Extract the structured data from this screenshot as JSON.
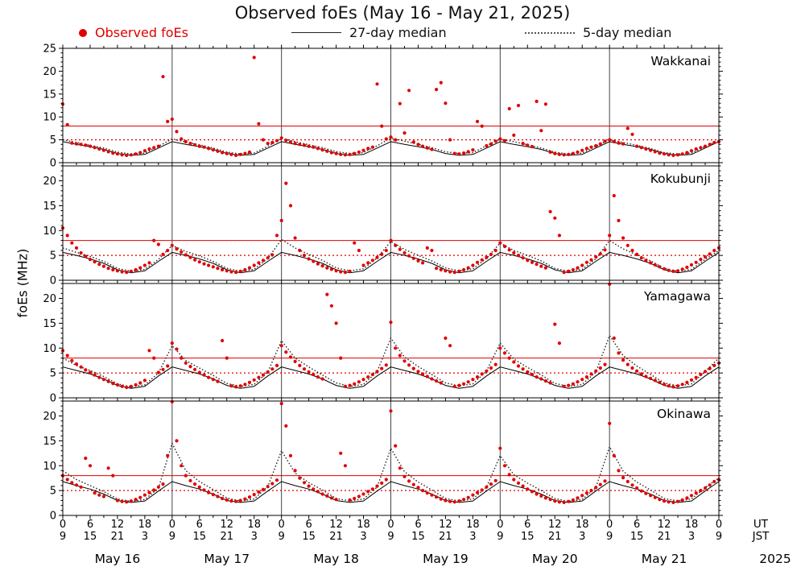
{
  "title": "Observed foEs (May 16 - May 21, 2025)",
  "ylabel": "foEs (MHz)",
  "legend": {
    "observed": "Observed foEs",
    "median27": "27-day median",
    "median5": "5-day median"
  },
  "colors": {
    "observed": "#e00000",
    "median27": "#000000",
    "median5": "#222222",
    "reference": "#e00000",
    "day_grid": "#444444"
  },
  "chart_data": {
    "type": "scatter",
    "x_unit_hours_ut": true,
    "x_range": [
      0,
      144
    ],
    "observed_step_hours": 1,
    "median_step_hours": 3,
    "reference_lines": {
      "solid": 8,
      "dotted": 5
    },
    "axis": {
      "tick_step_hours": 6,
      "day_boundaries": [
        24,
        48,
        72,
        96,
        120
      ],
      "ut_labels": [
        "0",
        "6",
        "12",
        "18",
        "0",
        "6",
        "12",
        "18",
        "0",
        "6",
        "12",
        "18",
        "0",
        "6",
        "12",
        "18",
        "0",
        "6",
        "12",
        "18",
        "0",
        "6",
        "12",
        "18",
        "0"
      ],
      "jst_labels": [
        "9",
        "15",
        "21",
        "3",
        "9",
        "15",
        "21",
        "3",
        "9",
        "15",
        "21",
        "3",
        "9",
        "15",
        "21",
        "3",
        "9",
        "15",
        "21",
        "3",
        "9",
        "15",
        "21",
        "3",
        "9"
      ],
      "ut_unit": "UT",
      "jst_unit": "JST",
      "day_labels": [
        "May 16",
        "May 17",
        "May 18",
        "May 19",
        "May 20",
        "May 21"
      ],
      "year_label": "2025"
    },
    "panels": [
      {
        "station": "Wakkanai",
        "ymax": 25,
        "yticks": [
          0,
          5,
          10,
          15,
          20,
          25
        ],
        "observed": [
          12.8,
          8.3,
          4.3,
          4.1,
          4.0,
          3.8,
          3.6,
          3.3,
          3.0,
          2.7,
          2.4,
          2.1,
          1.9,
          1.7,
          1.6,
          1.7,
          1.9,
          2.2,
          2.6,
          3.0,
          3.3,
          3.6,
          18.8,
          9.0,
          9.5,
          6.8,
          5.2,
          4.6,
          4.2,
          3.9,
          3.6,
          3.4,
          3.1,
          2.8,
          2.5,
          2.2,
          2.0,
          1.8,
          1.6,
          1.8,
          2.0,
          2.3,
          23.0,
          8.5,
          5.0,
          4.2,
          4.4,
          4.8,
          5.4,
          4.9,
          4.5,
          4.2,
          4.0,
          3.8,
          3.6,
          3.4,
          3.1,
          2.8,
          2.5,
          2.2,
          2.0,
          1.8,
          1.7,
          1.8,
          2.0,
          2.3,
          2.7,
          3.1,
          3.4,
          17.2,
          8.0,
          5.2,
          5.6,
          5.0,
          12.9,
          6.5,
          15.8,
          4.5,
          4.0,
          3.6,
          3.2,
          2.9,
          16.0,
          17.5,
          13.0,
          5.0,
          2.0,
          1.9,
          2.1,
          2.4,
          2.8,
          9.0,
          8.0,
          3.7,
          4.1,
          4.7,
          5.2,
          4.8,
          11.8,
          6.0,
          12.5,
          4.2,
          3.8,
          3.5,
          13.4,
          7.0,
          12.8,
          2.3,
          2.0,
          1.8,
          1.7,
          1.8,
          2.0,
          2.3,
          2.7,
          3.1,
          3.4,
          3.7,
          4.1,
          4.7,
          5.0,
          4.6,
          4.3,
          4.1,
          7.5,
          6.2,
          3.6,
          3.3,
          3.0,
          2.7,
          2.4,
          2.1,
          1.9,
          1.7,
          1.6,
          1.7,
          1.9,
          2.2,
          2.6,
          3.0,
          3.3,
          3.6,
          4.0,
          4.4,
          4.6
        ],
        "median27": [
          4.6,
          4,
          3.5,
          2.9,
          2,
          1.6,
          1.8,
          3.2,
          4.6,
          4,
          3.5,
          2.9,
          2,
          1.6,
          1.8,
          3.2,
          4.6,
          4,
          3.5,
          2.9,
          2,
          1.6,
          1.8,
          3.2,
          4.6,
          4,
          3.5,
          2.9,
          2,
          1.6,
          1.8,
          3.2,
          4.6,
          4,
          3.5,
          2.9,
          2,
          1.6,
          1.8,
          3.2,
          4.6,
          4,
          3.5,
          2.9,
          2,
          1.6,
          1.8,
          3.2,
          4.6
        ],
        "median5": [
          5.0,
          4.4,
          3.8,
          3.2,
          2.3,
          1.9,
          2.1,
          3.6,
          5.2,
          4.5,
          3.9,
          3.2,
          2.3,
          1.9,
          2.1,
          3.6,
          5.3,
          4.6,
          3.9,
          3.3,
          2.4,
          2.0,
          2.2,
          3.7,
          5.4,
          4.7,
          4.0,
          3.3,
          2.4,
          2.0,
          2.2,
          3.7,
          5.2,
          4.6,
          3.9,
          3.2,
          2.3,
          1.9,
          2.1,
          3.6,
          5.0,
          4.4,
          3.8,
          3.1,
          2.2,
          1.9,
          2.1,
          3.5,
          4.8
        ]
      },
      {
        "station": "Kokubunji",
        "ymax": 23,
        "yticks": [
          0,
          5,
          10,
          15,
          20
        ],
        "observed": [
          10.5,
          9.0,
          7.5,
          6.5,
          5.5,
          4.8,
          4.2,
          3.7,
          3.2,
          2.8,
          2.4,
          2.1,
          1.9,
          1.7,
          1.6,
          1.8,
          2.1,
          2.5,
          3.0,
          3.5,
          8.0,
          7.2,
          5.2,
          6.0,
          7.0,
          6.3,
          5.7,
          5.1,
          4.6,
          4.1,
          3.7,
          3.3,
          3.0,
          2.7,
          2.4,
          2.1,
          1.9,
          1.7,
          1.6,
          1.8,
          2.1,
          2.5,
          3.0,
          3.5,
          4.0,
          4.5,
          5.1,
          9.0,
          12.0,
          19.5,
          15.0,
          8.5,
          6.0,
          5.0,
          4.3,
          3.8,
          3.3,
          2.9,
          2.5,
          2.2,
          1.9,
          1.7,
          1.6,
          1.8,
          7.5,
          6.0,
          3.0,
          3.5,
          4.0,
          4.6,
          5.2,
          6.0,
          8.0,
          7.0,
          6.2,
          5.5,
          4.9,
          4.4,
          3.9,
          3.5,
          6.5,
          6.0,
          2.4,
          2.1,
          1.9,
          1.7,
          1.6,
          1.8,
          2.1,
          2.5,
          3.0,
          3.6,
          4.1,
          4.6,
          5.2,
          6.0,
          7.5,
          6.8,
          6.1,
          5.5,
          5.0,
          4.5,
          4.0,
          3.6,
          3.2,
          2.8,
          2.5,
          13.8,
          12.5,
          9.0,
          1.6,
          1.8,
          2.1,
          2.5,
          3.0,
          3.6,
          4.1,
          4.7,
          5.3,
          6.1,
          9.0,
          17.0,
          12.0,
          8.5,
          7.0,
          6.0,
          5.2,
          4.5,
          4.0,
          3.5,
          3.1,
          2.7,
          2.3,
          2.0,
          1.8,
          1.9,
          2.2,
          2.6,
          3.1,
          3.6,
          4.2,
          4.7,
          5.3,
          6.0,
          6.5
        ],
        "median27": [
          5.6,
          5,
          4.3,
          3.4,
          2.1,
          1.5,
          1.9,
          3.8,
          5.6,
          5,
          4.3,
          3.4,
          2.1,
          1.5,
          1.9,
          3.8,
          5.6,
          5,
          4.3,
          3.4,
          2.1,
          1.5,
          1.9,
          3.8,
          5.6,
          5,
          4.3,
          3.4,
          2.1,
          1.5,
          1.9,
          3.8,
          5.6,
          5,
          4.3,
          3.4,
          2.1,
          1.5,
          1.9,
          3.8,
          5.6,
          5,
          4.3,
          3.4,
          2.1,
          1.5,
          1.9,
          3.8,
          5.6
        ],
        "median5": [
          6.5,
          5.6,
          4.8,
          3.8,
          2.4,
          1.8,
          2.2,
          4.2,
          7.0,
          5.8,
          4.9,
          3.8,
          2.4,
          1.8,
          2.2,
          4.4,
          8.2,
          6.5,
          5.2,
          4.0,
          2.5,
          1.9,
          2.3,
          4.5,
          7.8,
          6.2,
          5.0,
          3.9,
          2.5,
          1.9,
          2.3,
          4.4,
          7.5,
          6.0,
          5.0,
          3.9,
          2.4,
          1.8,
          2.2,
          4.3,
          8.0,
          6.3,
          5.1,
          3.9,
          2.4,
          1.8,
          2.2,
          4.2,
          6.0
        ]
      },
      {
        "station": "Yamagawa",
        "ymax": 23,
        "yticks": [
          0,
          5,
          10,
          15,
          20
        ],
        "observed": [
          9.5,
          8.5,
          7.5,
          6.8,
          6.2,
          5.6,
          5.1,
          4.6,
          4.1,
          3.7,
          3.3,
          2.9,
          2.6,
          2.3,
          2.1,
          2.3,
          2.6,
          3.0,
          3.5,
          9.5,
          8.0,
          5.1,
          5.7,
          6.4,
          11.0,
          9.8,
          8.0,
          7.0,
          6.3,
          5.7,
          5.1,
          4.6,
          4.1,
          3.7,
          3.3,
          11.5,
          8.0,
          2.4,
          2.2,
          2.4,
          2.7,
          3.1,
          3.6,
          4.1,
          4.6,
          5.2,
          5.8,
          6.5,
          10.5,
          9.2,
          8.2,
          7.3,
          6.5,
          5.8,
          5.2,
          4.7,
          4.2,
          3.8,
          20.8,
          18.5,
          15.0,
          8.0,
          2.3,
          2.5,
          2.8,
          3.2,
          3.7,
          4.2,
          4.7,
          5.3,
          5.9,
          6.6,
          15.2,
          10.0,
          8.5,
          7.4,
          6.6,
          5.9,
          5.3,
          4.8,
          4.3,
          3.8,
          3.4,
          3.0,
          12.0,
          10.5,
          2.3,
          2.5,
          2.8,
          3.2,
          3.7,
          4.2,
          4.8,
          5.4,
          6.0,
          6.7,
          10.0,
          9.0,
          8.0,
          7.2,
          6.4,
          5.8,
          5.2,
          4.7,
          4.2,
          3.8,
          3.4,
          3.0,
          14.8,
          11.0,
          2.3,
          2.5,
          2.8,
          3.2,
          3.7,
          4.2,
          4.8,
          5.4,
          6.0,
          6.7,
          23.2,
          12.0,
          9.0,
          7.6,
          6.7,
          6.0,
          5.4,
          4.8,
          4.3,
          3.9,
          3.5,
          3.1,
          2.7,
          2.4,
          2.2,
          2.4,
          2.7,
          3.1,
          3.6,
          4.1,
          4.7,
          5.3,
          5.9,
          6.5,
          7.0
        ],
        "median27": [
          6.2,
          5.5,
          4.8,
          3.8,
          2.5,
          1.9,
          2.3,
          4.4,
          6.2,
          5.5,
          4.8,
          3.8,
          2.5,
          1.9,
          2.3,
          4.4,
          6.2,
          5.5,
          4.8,
          3.8,
          2.5,
          1.9,
          2.3,
          4.4,
          6.2,
          5.5,
          4.8,
          3.8,
          2.5,
          1.9,
          2.3,
          4.4,
          6.2,
          5.5,
          4.8,
          3.8,
          2.5,
          1.9,
          2.3,
          4.4,
          6.2,
          5.5,
          4.8,
          3.8,
          2.5,
          1.9,
          2.3,
          4.4,
          6.2
        ],
        "median5": [
          8.0,
          6.5,
          5.5,
          4.3,
          2.8,
          2.2,
          2.6,
          5.0,
          10.5,
          7.5,
          6.0,
          4.5,
          2.9,
          2.3,
          2.7,
          5.2,
          11.5,
          8.0,
          6.2,
          4.6,
          3.0,
          2.3,
          2.7,
          5.3,
          12.0,
          8.2,
          6.3,
          4.7,
          3.0,
          2.4,
          2.8,
          5.4,
          11.0,
          7.8,
          6.1,
          4.6,
          2.9,
          2.3,
          2.7,
          5.2,
          12.5,
          8.5,
          6.4,
          4.7,
          3.0,
          2.4,
          2.8,
          5.3,
          8.0
        ]
      },
      {
        "station": "Okinawa",
        "ymax": 23,
        "yticks": [
          0,
          5,
          10,
          15,
          20
        ],
        "observed": [
          8.0,
          7.2,
          6.6,
          6.1,
          5.7,
          11.5,
          10.0,
          4.5,
          4.1,
          3.8,
          9.5,
          8.0,
          3.0,
          2.8,
          2.7,
          2.9,
          3.2,
          3.6,
          4.1,
          4.6,
          5.1,
          5.7,
          6.3,
          12.0,
          23.8,
          15.0,
          10.0,
          8.0,
          7.0,
          6.3,
          5.7,
          5.1,
          4.6,
          4.2,
          3.8,
          3.4,
          3.1,
          2.9,
          2.8,
          3.0,
          3.3,
          3.7,
          4.2,
          4.7,
          5.2,
          5.8,
          6.4,
          7.1,
          22.5,
          18.0,
          12.0,
          9.0,
          7.5,
          6.6,
          5.9,
          5.3,
          4.8,
          4.3,
          3.9,
          3.5,
          3.2,
          12.5,
          10.0,
          3.1,
          3.4,
          3.8,
          4.3,
          4.8,
          5.3,
          5.9,
          6.5,
          7.2,
          21.0,
          14.0,
          9.5,
          7.8,
          6.9,
          6.2,
          5.6,
          5.0,
          4.5,
          4.1,
          3.7,
          3.3,
          3.0,
          2.8,
          2.7,
          2.9,
          3.2,
          3.6,
          4.1,
          4.6,
          5.1,
          5.7,
          6.3,
          7.0,
          13.5,
          10.0,
          8.2,
          7.2,
          6.5,
          5.9,
          5.3,
          4.8,
          4.3,
          3.9,
          3.5,
          3.2,
          2.9,
          2.7,
          2.6,
          2.8,
          3.1,
          3.5,
          4.0,
          4.5,
          5.0,
          5.6,
          6.2,
          6.9,
          18.5,
          12.0,
          9.0,
          7.6,
          6.8,
          6.1,
          5.5,
          4.9,
          4.4,
          4.0,
          3.6,
          3.2,
          2.9,
          2.7,
          2.6,
          2.8,
          3.1,
          3.5,
          4.0,
          4.5,
          5.0,
          5.5,
          6.1,
          6.8,
          7.2
        ],
        "median27": [
          6.8,
          6,
          5.3,
          4.3,
          3,
          2.6,
          2.9,
          4.9,
          6.8,
          6,
          5.3,
          4.3,
          3,
          2.6,
          2.9,
          4.9,
          6.8,
          6,
          5.3,
          4.3,
          3,
          2.6,
          2.9,
          4.9,
          6.8,
          6,
          5.3,
          4.3,
          3,
          2.6,
          2.9,
          4.9,
          6.8,
          6,
          5.3,
          4.3,
          3,
          2.6,
          2.9,
          4.9,
          6.8,
          6,
          5.3,
          4.3,
          3,
          2.6,
          2.9,
          4.9,
          6.8
        ],
        "median5": [
          9.0,
          7.2,
          6.0,
          4.8,
          3.3,
          2.8,
          3.2,
          5.5,
          14.5,
          9.0,
          6.8,
          5.2,
          3.5,
          2.9,
          3.3,
          5.8,
          13.0,
          8.5,
          6.6,
          5.1,
          3.4,
          2.9,
          3.3,
          5.7,
          13.5,
          8.8,
          6.7,
          5.1,
          3.4,
          2.9,
          3.3,
          5.7,
          12.0,
          8.2,
          6.5,
          5.0,
          3.4,
          2.8,
          3.2,
          5.6,
          13.8,
          8.9,
          6.7,
          5.1,
          3.4,
          2.9,
          3.3,
          5.6,
          7.5
        ]
      }
    ]
  }
}
